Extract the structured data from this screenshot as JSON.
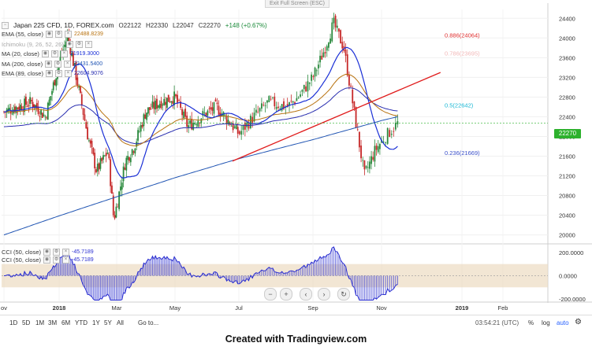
{
  "header": {
    "symbol_title": "Japan 225 CFD, 1D, FOREX.com",
    "open": "O22122",
    "high": "H22330",
    "low": "L22047",
    "close": "C22270",
    "change": "+148 (+0.67%)"
  },
  "fullscreen_label": "Exit Full Screen (ESC)",
  "indicators": [
    {
      "label": "EMA (55, close)",
      "value": "22488.8239",
      "color": "#b8720f"
    },
    {
      "label": "Ichimoku (9, 26, 52, 26)",
      "value": "",
      "color": "#aaaaaa"
    },
    {
      "label": "MA (20, close)",
      "value": "21919.3000",
      "color": "#1a2fd6"
    },
    {
      "label": "MA (200, close)",
      "value": "22431.5400",
      "color": "#2155b3"
    },
    {
      "label": "EMA (89, close)",
      "value": "22604.9076",
      "color": "#2a2fb0"
    }
  ],
  "cci_legend": [
    {
      "label": "CCI (50, close)",
      "value": "-45.7189"
    },
    {
      "label": "CCI (50, close)",
      "value": "-45.7189"
    }
  ],
  "price_badge": "22270",
  "fib_labels": [
    {
      "text": "0.886(24064)",
      "color": "#e03030"
    },
    {
      "text": "0.786(23695)",
      "color": "#f2b8b8"
    },
    {
      "text": "0.5(22642)",
      "color": "#1ab7d4"
    },
    {
      "text": "0.236(21669)",
      "color": "#3a4fc9"
    }
  ],
  "cci_ticks": [
    "200.0000",
    "0.0000",
    "-200.0000"
  ],
  "range_buttons": [
    "1D",
    "5D",
    "1M",
    "3M",
    "6M",
    "YTD",
    "1Y",
    "5Y",
    "All"
  ],
  "goto_label": "Go to...",
  "clock": "03:54:21 (UTC)",
  "scale_buttons": [
    "%",
    "log",
    "auto"
  ],
  "nav_controls": [
    "−",
    "+",
    "‹",
    "›",
    "↻"
  ],
  "caption": "Created with Tradingview.com",
  "colors": {
    "up": "#2b8a3e",
    "down": "#c62828",
    "ema55": "#b8720f",
    "ma20": "#1a2fd6",
    "ma200": "#2155b3",
    "ema89": "#2a2fb0",
    "trendline": "#e01b1b",
    "cci": "#2b2fd1",
    "cci_band": "#ecdcc2"
  },
  "chart_data": {
    "type": "candlestick",
    "title": "Japan 225 CFD, 1D, FOREX.com",
    "x_ticks": [
      "ov",
      "2018",
      "Mar",
      "May",
      "Jul",
      "Sep",
      "Nov",
      "2019",
      "Feb"
    ],
    "y_ticks": [
      24400,
      24000,
      23600,
      23200,
      22800,
      22400,
      22000,
      21600,
      21200,
      20800,
      20400,
      20000
    ],
    "ylim": [
      19850,
      24580
    ],
    "fibonacci": [
      {
        "level": 0.886,
        "price": 24064
      },
      {
        "level": 0.786,
        "price": 23695
      },
      {
        "level": 0.5,
        "price": 22642
      },
      {
        "level": 0.236,
        "price": 21669
      }
    ],
    "trendline": [
      {
        "x": "2018-06-25",
        "y": 21500
      },
      {
        "x": "2018-12-15",
        "y": 23300
      }
    ],
    "last_price": 22270,
    "cci": {
      "name": "CCI (50, close)",
      "value": -45.7189,
      "ylim": [
        -220,
        260
      ]
    }
  }
}
